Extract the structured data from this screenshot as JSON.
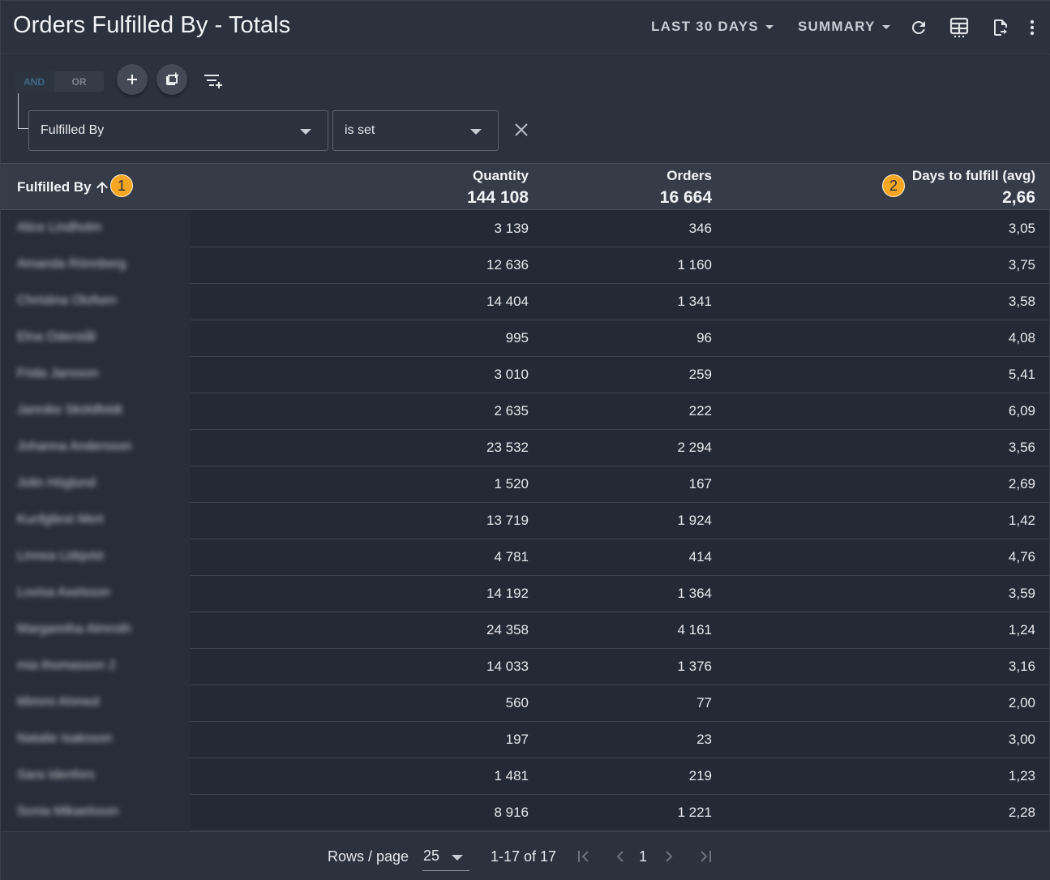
{
  "header": {
    "title": "Orders Fulfilled By - Totals",
    "range_label": "LAST 30 DAYS",
    "view_label": "SUMMARY",
    "icons": [
      "refresh-icon",
      "table-columns-icon",
      "export-icon",
      "more-vert-icon"
    ]
  },
  "filters": {
    "logic_and": "AND",
    "logic_or": "OR",
    "field": "Fulfilled By",
    "operator": "is set"
  },
  "table": {
    "columns": {
      "name": "Fulfilled By",
      "quantity": "Quantity",
      "orders": "Orders",
      "days": "Days to fulfill (avg)"
    },
    "totals": {
      "quantity": "144 108",
      "orders": "16 664",
      "days": "2,66"
    },
    "badges": [
      "1",
      "2"
    ],
    "rows": [
      {
        "name": "Alice Lindholm",
        "quantity": "3 139",
        "orders": "346",
        "days": "3,05"
      },
      {
        "name": "Amanda Rönnberg",
        "quantity": "12 636",
        "orders": "1 160",
        "days": "3,75"
      },
      {
        "name": "Christina Olofsen",
        "quantity": "14 404",
        "orders": "1 341",
        "days": "3,58"
      },
      {
        "name": "Elna Oderstål",
        "quantity": "995",
        "orders": "96",
        "days": "4,08"
      },
      {
        "name": "Frida Jansson",
        "quantity": "3 010",
        "orders": "259",
        "days": "5,41"
      },
      {
        "name": "Jannike Sköldfeldt",
        "quantity": "2 635",
        "orders": "222",
        "days": "6,09"
      },
      {
        "name": "Johanna Andersson",
        "quantity": "23 532",
        "orders": "2 294",
        "days": "3,56"
      },
      {
        "name": "Jolin Höglund",
        "quantity": "1 520",
        "orders": "167",
        "days": "2,69"
      },
      {
        "name": "Kunfgliest Mert",
        "quantity": "13 719",
        "orders": "1 924",
        "days": "1,42"
      },
      {
        "name": "Linnea Lidqvist",
        "quantity": "4 781",
        "orders": "414",
        "days": "4,76"
      },
      {
        "name": "Lovisa Axelsson",
        "quantity": "14 192",
        "orders": "1 364",
        "days": "3,59"
      },
      {
        "name": "Margaretha Almroth",
        "quantity": "24 358",
        "orders": "4 161",
        "days": "1,24"
      },
      {
        "name": "mia thomasson 2",
        "quantity": "14 033",
        "orders": "1 376",
        "days": "3,16"
      },
      {
        "name": "Mimmi Ahmed",
        "quantity": "560",
        "orders": "77",
        "days": "2,00"
      },
      {
        "name": "Natalie Isaksson",
        "quantity": "197",
        "orders": "23",
        "days": "3,00"
      },
      {
        "name": "Sara Idenfors",
        "quantity": "1 481",
        "orders": "219",
        "days": "1,23"
      },
      {
        "name": "Sonia Mikaelsson",
        "quantity": "8 916",
        "orders": "1 221",
        "days": "2,28"
      }
    ]
  },
  "footer": {
    "rows_per_page_label": "Rows / page",
    "rows_per_page": "25",
    "range": "1-17 of 17",
    "page": "1"
  },
  "colors": {
    "background": "#242a35",
    "header": "#2b313d",
    "badge": "#f5a623"
  }
}
